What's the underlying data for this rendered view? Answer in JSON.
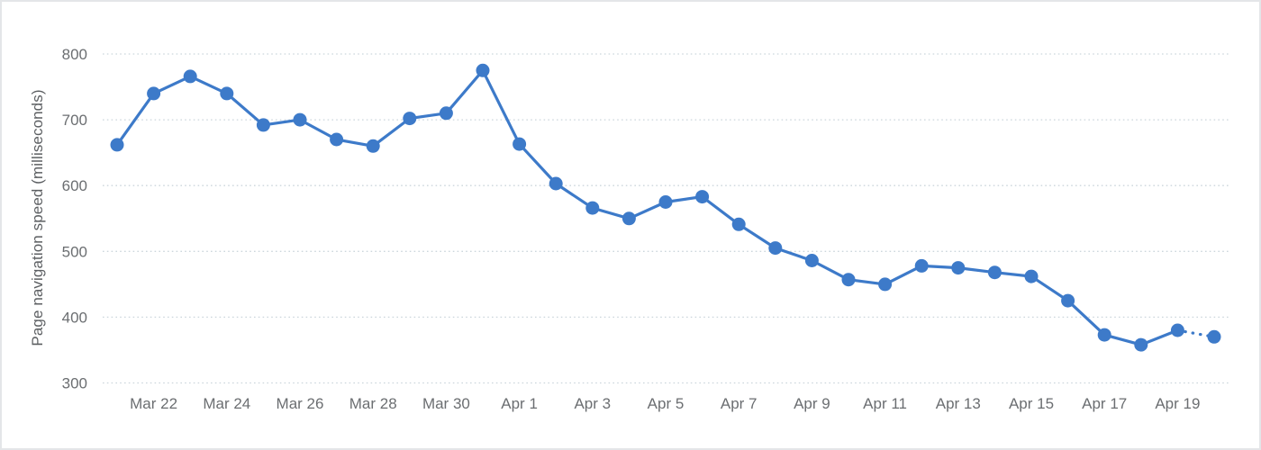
{
  "page": {
    "background": "#ffffff",
    "border_color": "#e4e6e8"
  },
  "chart_data": {
    "type": "line",
    "title": "",
    "xlabel": "",
    "ylabel": "Page navigation speed (milliseconds)",
    "categories": [
      "Mar 21",
      "Mar 22",
      "Mar 23",
      "Mar 24",
      "Mar 25",
      "Mar 26",
      "Mar 27",
      "Mar 28",
      "Mar 29",
      "Mar 30",
      "Mar 31",
      "Apr 1",
      "Apr 2",
      "Apr 3",
      "Apr 4",
      "Apr 5",
      "Apr 6",
      "Apr 7",
      "Apr 8",
      "Apr 9",
      "Apr 10",
      "Apr 11",
      "Apr 12",
      "Apr 13",
      "Apr 14",
      "Apr 15",
      "Apr 16",
      "Apr 17",
      "Apr 18",
      "Apr 19",
      "Apr 20"
    ],
    "series": [
      {
        "name": "Page navigation speed",
        "values": [
          662,
          740,
          766,
          740,
          692,
          700,
          670,
          660,
          702,
          710,
          775,
          663,
          603,
          566,
          550,
          575,
          583,
          541,
          505,
          486,
          457,
          450,
          478,
          475,
          468,
          462,
          425,
          373,
          358,
          380,
          370
        ]
      }
    ],
    "x_tick_labels": [
      "Mar 22",
      "Mar 24",
      "Mar 26",
      "Mar 28",
      "Mar 30",
      "Apr 1",
      "Apr 3",
      "Apr 5",
      "Apr 7",
      "Apr 9",
      "Apr 11",
      "Apr 13",
      "Apr 15",
      "Apr 17",
      "Apr 19"
    ],
    "yticks": [
      300,
      400,
      500,
      600,
      700,
      800
    ],
    "ylim": [
      300,
      800
    ],
    "grid": "horizontal-dotted",
    "legend": "none",
    "line_color": "#3d7ac9",
    "gridline_color": "#ccd6dc",
    "marker": "circle",
    "last_segment_style": "dotted"
  }
}
